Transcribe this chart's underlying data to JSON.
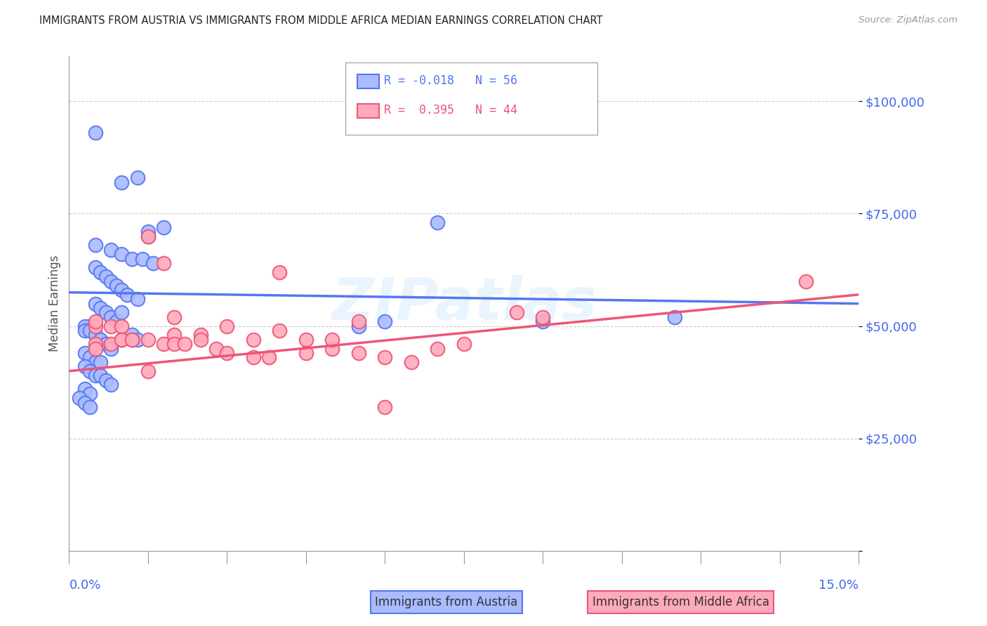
{
  "title": "IMMIGRANTS FROM AUSTRIA VS IMMIGRANTS FROM MIDDLE AFRICA MEDIAN EARNINGS CORRELATION CHART",
  "source": "Source: ZipAtlas.com",
  "ylabel": "Median Earnings",
  "xlim": [
    0.0,
    0.15
  ],
  "ylim": [
    0,
    110000
  ],
  "yticks": [
    0,
    25000,
    50000,
    75000,
    100000
  ],
  "ytick_labels": [
    "",
    "$25,000",
    "$50,000",
    "$75,000",
    "$100,000"
  ],
  "legend_r1": "R = -0.018   N = 56",
  "legend_r2": "R =  0.395   N = 44",
  "color_austria": "#5577ee",
  "color_austria_fill": "#aabbff",
  "color_middle_africa": "#ee5577",
  "color_middle_africa_fill": "#ffaabb",
  "watermark": "ZIPatlas",
  "austria_scatter_x": [
    0.005,
    0.01,
    0.013,
    0.015,
    0.018,
    0.005,
    0.008,
    0.01,
    0.012,
    0.014,
    0.016,
    0.005,
    0.006,
    0.007,
    0.008,
    0.009,
    0.01,
    0.011,
    0.013,
    0.015,
    0.005,
    0.006,
    0.007,
    0.008,
    0.009,
    0.004,
    0.003,
    0.003,
    0.004,
    0.005,
    0.006,
    0.007,
    0.008,
    0.003,
    0.004,
    0.005,
    0.006,
    0.003,
    0.004,
    0.005,
    0.006,
    0.007,
    0.008,
    0.012,
    0.013,
    0.003,
    0.004,
    0.002,
    0.003,
    0.004,
    0.06,
    0.07,
    0.055,
    0.09,
    0.115,
    0.01
  ],
  "austria_scatter_y": [
    93000,
    82000,
    83000,
    70000,
    72000,
    68000,
    67000,
    66000,
    65000,
    65000,
    64000,
    63000,
    62000,
    61000,
    60000,
    59000,
    58000,
    57000,
    56000,
    71000,
    55000,
    54000,
    53000,
    52000,
    51000,
    50000,
    50000,
    49000,
    49000,
    48000,
    47000,
    46000,
    45000,
    44000,
    43000,
    42000,
    42000,
    41000,
    40000,
    39000,
    39000,
    38000,
    37000,
    48000,
    47000,
    36000,
    35000,
    34000,
    33000,
    32000,
    51000,
    73000,
    50000,
    51000,
    52000,
    53000
  ],
  "middle_africa_scatter_x": [
    0.005,
    0.01,
    0.015,
    0.02,
    0.025,
    0.03,
    0.035,
    0.04,
    0.045,
    0.05,
    0.055,
    0.06,
    0.065,
    0.07,
    0.075,
    0.005,
    0.008,
    0.01,
    0.012,
    0.015,
    0.018,
    0.02,
    0.022,
    0.025,
    0.028,
    0.03,
    0.035,
    0.038,
    0.04,
    0.045,
    0.05,
    0.055,
    0.06,
    0.005,
    0.008,
    0.01,
    0.012,
    0.015,
    0.018,
    0.02,
    0.085,
    0.09,
    0.14,
    0.005
  ],
  "middle_africa_scatter_y": [
    46000,
    47000,
    70000,
    48000,
    48000,
    50000,
    47000,
    49000,
    47000,
    45000,
    44000,
    43000,
    42000,
    45000,
    46000,
    50000,
    50000,
    50000,
    47000,
    47000,
    46000,
    46000,
    46000,
    47000,
    45000,
    44000,
    43000,
    43000,
    62000,
    44000,
    47000,
    51000,
    32000,
    45000,
    46000,
    47000,
    47000,
    40000,
    64000,
    52000,
    53000,
    52000,
    60000,
    51000
  ],
  "austria_line_x": [
    0.0,
    0.15
  ],
  "austria_line_y": [
    57500,
    55000
  ],
  "middle_africa_line_x": [
    0.0,
    0.15
  ],
  "middle_africa_line_y": [
    40000,
    57000
  ],
  "grid_color": "#cccccc",
  "background_color": "#ffffff",
  "title_color": "#222222",
  "tick_label_color": "#4466ee"
}
